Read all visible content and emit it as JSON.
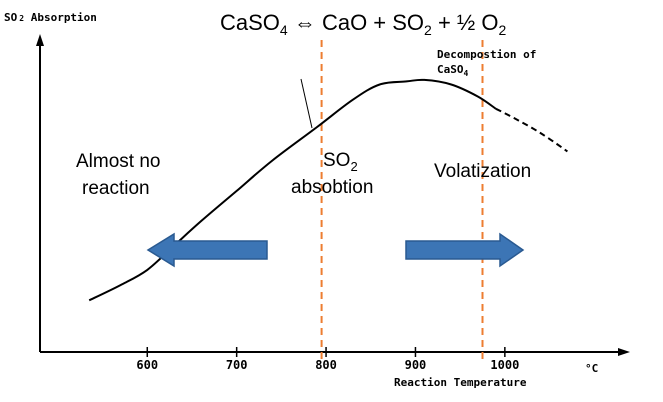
{
  "chart_data": {
    "type": "line",
    "ylabel": "SO",
    "ylabel_sub": "2",
    "ylabel_rest": " Absorption",
    "equation": {
      "p1": "CaSO",
      "s1": "4",
      "p2": " ⇔ CaO + SO",
      "s2": "2",
      "p3": " + ½ O",
      "s3": "2"
    },
    "xlabel": "Reaction Temperature",
    "xunit": "°C",
    "xticks": [
      600,
      700,
      800,
      900,
      1000
    ],
    "xlim": [
      480,
      1140
    ],
    "ylim": [
      0,
      1
    ],
    "series": [
      {
        "style": "solid",
        "x": [
          535,
          570,
          600,
          630,
          660,
          700,
          740,
          790,
          830,
          860,
          890,
          910,
          940,
          970,
          990
        ],
        "y": [
          0.17,
          0.22,
          0.27,
          0.35,
          0.43,
          0.53,
          0.63,
          0.74,
          0.83,
          0.88,
          0.89,
          0.895,
          0.88,
          0.84,
          0.8
        ]
      },
      {
        "style": "dashed",
        "x": [
          990,
          1010,
          1040,
          1070
        ],
        "y": [
          0.8,
          0.77,
          0.72,
          0.66
        ]
      }
    ],
    "vlines": [
      795,
      975
    ],
    "decomposition_label": {
      "line1": "Decompostion of",
      "line2": "CaSO",
      "line2_sub": "4"
    },
    "regions": {
      "left_line1": "Almost no",
      "left_line2": "reaction",
      "middle_line1": "SO",
      "middle_sub": "2",
      "middle_line2": "absobtion",
      "right": "Volatization"
    },
    "arrow_color": "#3c75b5",
    "arrow_border": "#2a5a91",
    "vline_color": "#ed7d31"
  }
}
